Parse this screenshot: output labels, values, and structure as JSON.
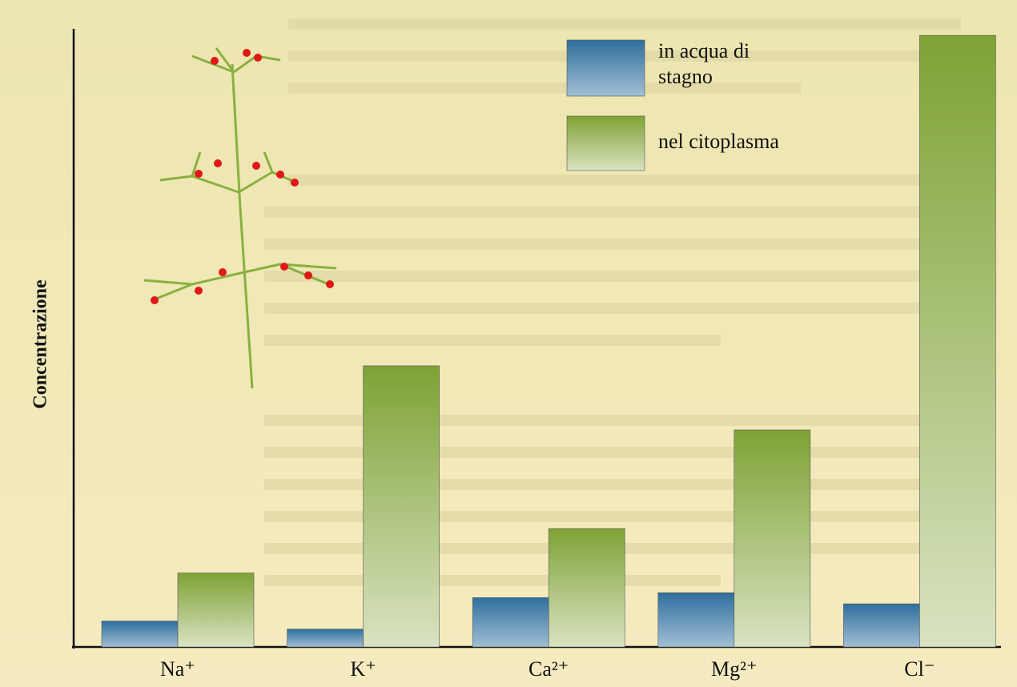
{
  "chart_data": {
    "type": "bar",
    "y_label": "Concentrazione",
    "categories": [
      "Na⁺",
      "K⁺",
      "Ca²⁺",
      "Mg²⁺",
      "Cl⁻"
    ],
    "series": [
      {
        "name": "in acqua di stagno",
        "color": "#2f6f9e",
        "values": [
          4.2,
          2.9,
          8,
          8.8,
          7
        ]
      },
      {
        "name": "nel citoplasma",
        "color": "#7fa235",
        "values": [
          12,
          45.6,
          19.2,
          35.2,
          99.2
        ]
      }
    ],
    "ylim": [
      0,
      100
    ]
  }
}
